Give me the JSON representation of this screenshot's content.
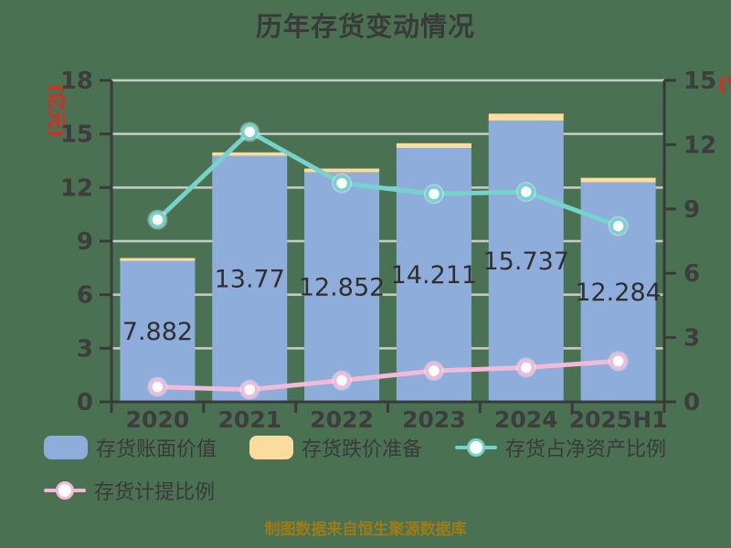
{
  "footer": {
    "source_note": "制图数据来自恒生聚源数据库"
  },
  "colors": {
    "background": "#4A7152",
    "bar_blue": "#8FADDB",
    "bar_yellow": "#FBDC9E",
    "line_teal": "#76D3CB",
    "line_pink": "#F2BAD7",
    "grid": "#C9CDC8",
    "axis": "#3a3a3a",
    "tick_text": "#3d3d3d",
    "bar_label_text": "#2f2f2f",
    "red_axis_label": "#e5261b",
    "footer_gold": "#9c7c18"
  },
  "chart_data": {
    "type": "bar",
    "subtype": "stacked-bars-with-lines-combo",
    "title": "历年存货变动情况",
    "categories": [
      "2020",
      "2021",
      "2022",
      "2023",
      "2024",
      "2025H1"
    ],
    "axes": {
      "left": {
        "label": "(亿元)",
        "min": 0,
        "max": 18,
        "step": 3,
        "ticks": [
          0,
          3,
          6,
          9,
          12,
          15,
          18
        ]
      },
      "right": {
        "label": "(%)",
        "min": 0,
        "max": 15,
        "step": 3,
        "ticks": [
          0,
          3,
          6,
          9,
          12,
          15
        ]
      }
    },
    "grid": true,
    "legend_position": "bottom-left",
    "series": [
      {
        "name": "存货账面价值",
        "type": "bar",
        "axis": "left",
        "stack": "inventory",
        "color": "#8FADDB",
        "values": [
          7.882,
          13.77,
          12.852,
          14.211,
          15.737,
          12.284
        ],
        "data_labels": true
      },
      {
        "name": "存货跌价准备",
        "type": "bar",
        "axis": "left",
        "stack": "inventory",
        "color": "#FBDC9E",
        "values": [
          0.17,
          0.2,
          0.21,
          0.27,
          0.4,
          0.26
        ],
        "data_labels": false
      },
      {
        "name": "存货占净资产比例",
        "type": "line",
        "axis": "right",
        "color": "#76D3CB",
        "values": [
          8.5,
          12.6,
          10.2,
          9.7,
          9.8,
          8.2
        ]
      },
      {
        "name": "存货计提比例",
        "type": "line",
        "axis": "right",
        "color": "#F2BAD7",
        "values": [
          0.7,
          0.57,
          1.0,
          1.45,
          1.6,
          1.9
        ]
      }
    ]
  }
}
